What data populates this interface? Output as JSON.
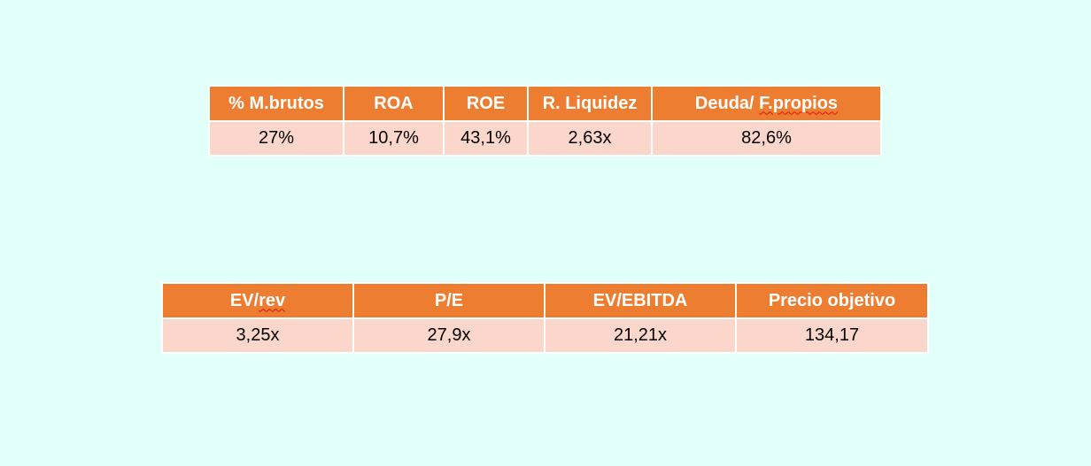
{
  "colors": {
    "background": "#e3fffa",
    "header_fill": "#ed7d31",
    "row_fill": "#fbd6cb",
    "header_text": "#ffffff",
    "spellcheck_underline": "#e01010"
  },
  "table1": {
    "headers": [
      "% M.brutos",
      "ROA",
      "ROE",
      "R. Liquidez",
      "Deuda/ ",
      "F.propios"
    ],
    "values": [
      "27%",
      "10,7%",
      "43,1%",
      "2,63x",
      "82,6%"
    ]
  },
  "table2": {
    "headers": [
      "EV/",
      "rev",
      "P/E",
      "EV/EBITDA",
      "Precio objetivo"
    ],
    "values": [
      "3,25x",
      "27,9x",
      "21,21x",
      "134,17"
    ]
  }
}
